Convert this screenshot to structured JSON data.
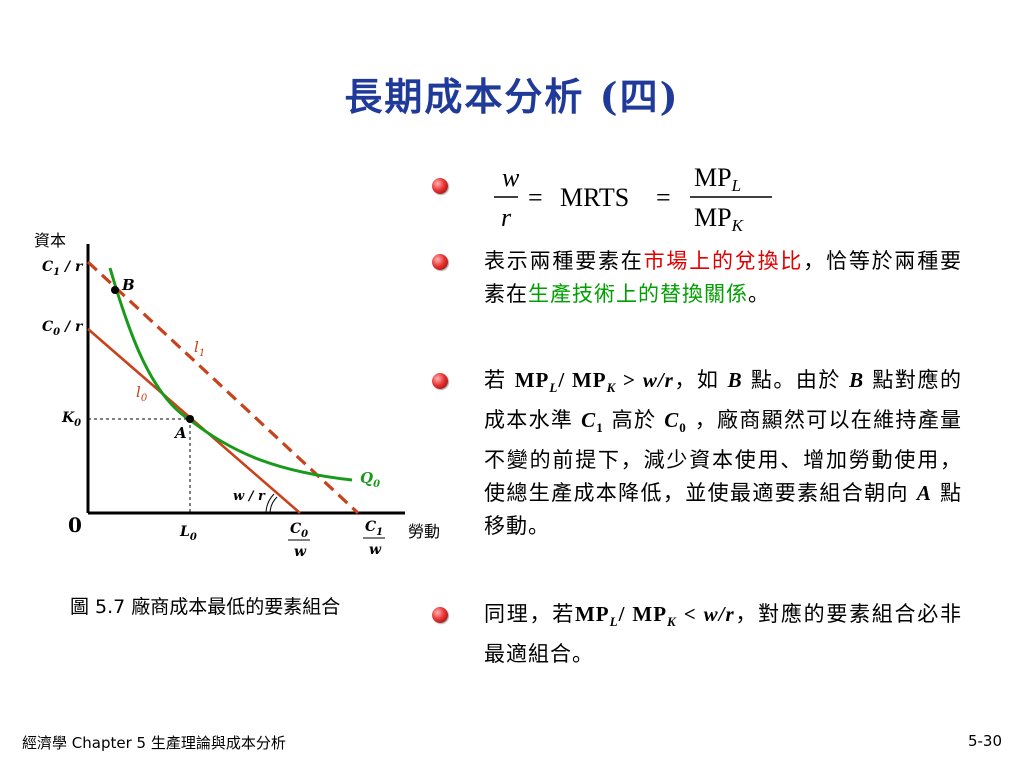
{
  "title": "長期成本分析 (四)",
  "formula": {
    "lhs_num": "w",
    "lhs_den": "r",
    "eq1": "=",
    "mid": "MRTS",
    "eq2": "=",
    "rhs_num": "MP",
    "rhs_num_sub": "L",
    "rhs_den": "MP",
    "rhs_den_sub": "K"
  },
  "figure": {
    "y_axis_label": "資本",
    "x_axis_label": "勞動",
    "origin": "0",
    "c1r_c": "C",
    "c1r_sub": "1",
    "c1r_tail": " / r",
    "c0r_c": "C",
    "c0r_sub": "0",
    "c0r_tail": " / r",
    "k0": "K",
    "k0_sub": "0",
    "l0x": "L",
    "l0x_sub": "0",
    "c0w_num": "C",
    "c0w_sub": "0",
    "c0w_den": "w",
    "c1w_num": "C",
    "c1w_sub": "1",
    "c1w_den": "w",
    "point_b": "B",
    "point_a": "A",
    "line_l1": "l",
    "line_l1_sub": "1",
    "line_l0": "l",
    "line_l0_sub": "0",
    "isoquant": "Q",
    "isoquant_sub": "0",
    "slope_label": "w / r",
    "colors": {
      "isocost": "#c8421a",
      "isoquant": "#1a9a1a",
      "axis": "#000000"
    }
  },
  "caption": "圖 5.7 廠商成本最低的要素組合",
  "bullets": {
    "b2_a": "表示兩種要素在",
    "b2_red": "市場上的兌換比",
    "b2_b": "，恰等於兩種要素在",
    "b2_green": "生產技術上的替換關係",
    "b2_c": "。",
    "b3_a": "若 ",
    "b3_mp1": "MP",
    "b3_l": "L",
    "b3_slash": "/ MP",
    "b3_k": "K",
    "b3_gt": " > ",
    "b3_wr": "w/r",
    "b3_b": "，如 ",
    "b3_B": "B",
    "b3_c": " 點。由於 ",
    "b3_B2": "B",
    "b3_d": " 點對應的成本水準 ",
    "b3_C1": "C",
    "b3_C1sub": "1",
    "b3_e": " 高於 ",
    "b3_C0": "C",
    "b3_C0sub": "0",
    "b3_f": " ，廠商顯然可以在維持產量不變的前提下，減少資本使用、增加勞動使用，使總生產成本降低，並使最適要素組合朝向 ",
    "b3_A": "A",
    "b3_g": " 點移動。",
    "b4_a": "同理，若",
    "b4_mp1": "MP",
    "b4_l": "L",
    "b4_slash": "/  MP",
    "b4_k": "K",
    "b4_lt": " < ",
    "b4_wr": "w/r",
    "b4_b": "，對應的要素組合必非最適組合。"
  },
  "footer": {
    "left": "經濟學   Chapter 5 生產理論與成本分析",
    "right": "5-30"
  }
}
